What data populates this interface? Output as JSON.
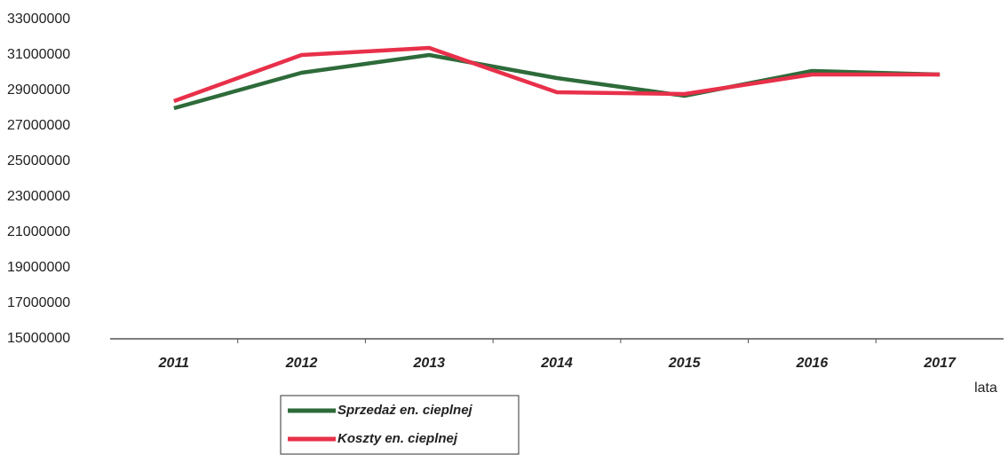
{
  "chart_data": {
    "type": "line",
    "x_label": "lata",
    "categories": [
      "2011",
      "2012",
      "2013",
      "2014",
      "2015",
      "2016",
      "2017"
    ],
    "series": [
      {
        "name": "Sprzedaż en. cieplnej",
        "color": "#2e6b3a",
        "values": [
          28000000,
          30000000,
          31000000,
          29700000,
          28700000,
          30100000,
          29900000
        ]
      },
      {
        "name": "Koszty en. cieplnej",
        "color": "#e8304a",
        "values": [
          28400000,
          31000000,
          31400000,
          28900000,
          28800000,
          29900000,
          29900000
        ]
      }
    ],
    "ylim": [
      15000000,
      33000000
    ],
    "yticks": [
      15000000,
      17000000,
      19000000,
      21000000,
      23000000,
      25000000,
      27000000,
      29000000,
      31000000,
      33000000
    ],
    "grid": false
  }
}
